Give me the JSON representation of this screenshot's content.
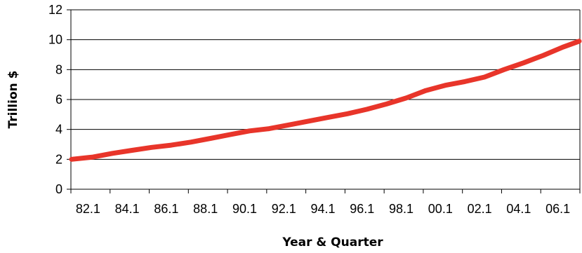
{
  "chart_data": {
    "type": "line",
    "title": "",
    "xlabel": "Year & Quarter",
    "ylabel": "Trillion $",
    "ylim": [
      0,
      12
    ],
    "yticks": [
      "0",
      "2",
      "4",
      "6",
      "8",
      "10",
      "12"
    ],
    "xticks": [
      "82.1",
      "84.1",
      "86.1",
      "88.1",
      "90.1",
      "92.1",
      "94.1",
      "96.1",
      "98.1",
      "00.1",
      "02.1",
      "04.1",
      "06.1"
    ],
    "grid": "horizontal",
    "legend": "none",
    "series": [
      {
        "color": "#e8352a",
        "x": [
          "82.1",
          "83.1",
          "84.1",
          "85.1",
          "86.1",
          "87.1",
          "88.1",
          "89.1",
          "90.1",
          "91.1",
          "92.1",
          "93.1",
          "94.1",
          "95.1",
          "96.1",
          "97.1",
          "98.1",
          "99.1",
          "00.1",
          "01.1",
          "02.1",
          "03.1",
          "04.1",
          "05.1",
          "06.1",
          "07.1",
          "07.4"
        ],
        "values": [
          2.0,
          2.15,
          2.4,
          2.6,
          2.8,
          2.95,
          3.15,
          3.4,
          3.65,
          3.9,
          4.05,
          4.3,
          4.55,
          4.8,
          5.05,
          5.35,
          5.7,
          6.1,
          6.6,
          6.95,
          7.2,
          7.5,
          8.0,
          8.45,
          8.95,
          9.5,
          9.9
        ]
      }
    ]
  }
}
